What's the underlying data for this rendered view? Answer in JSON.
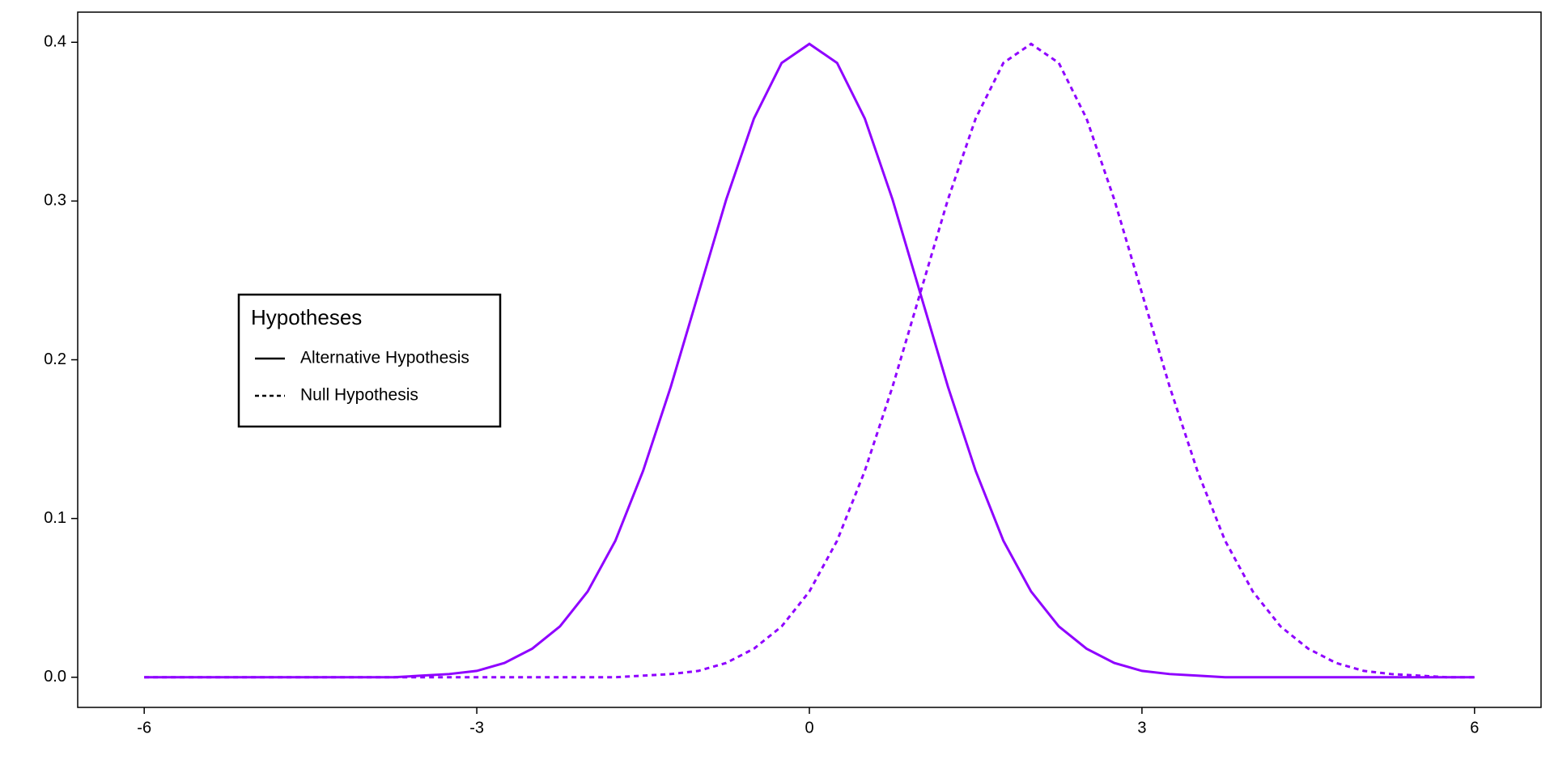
{
  "chart_data": {
    "type": "line",
    "x": [
      -6,
      -5.75,
      -5.5,
      -5.25,
      -5,
      -4.75,
      -4.5,
      -4.25,
      -4,
      -3.75,
      -3.5,
      -3.25,
      -3,
      -2.75,
      -2.5,
      -2.25,
      -2,
      -1.75,
      -1.5,
      -1.25,
      -1,
      -0.75,
      -0.5,
      -0.25,
      0,
      0.25,
      0.5,
      0.75,
      1,
      1.25,
      1.5,
      1.75,
      2,
      2.25,
      2.5,
      2.75,
      3,
      3.25,
      3.5,
      3.75,
      4,
      4.25,
      4.5,
      4.75,
      5,
      5.25,
      5.5,
      5.75,
      6
    ],
    "series": [
      {
        "name": "Alternative Hypothesis",
        "color": "#8f00ff",
        "linestyle": "solid",
        "values": [
          0,
          0,
          0,
          0,
          0,
          0,
          0,
          0,
          0,
          0,
          0.001,
          0.002,
          0.004,
          0.009,
          0.018,
          0.032,
          0.054,
          0.086,
          0.13,
          0.183,
          0.242,
          0.301,
          0.352,
          0.387,
          0.399,
          0.387,
          0.352,
          0.301,
          0.242,
          0.183,
          0.13,
          0.086,
          0.054,
          0.032,
          0.018,
          0.009,
          0.004,
          0.002,
          0.001,
          0,
          0,
          0,
          0,
          0,
          0,
          0,
          0,
          0,
          0
        ]
      },
      {
        "name": "Null Hypothesis",
        "color": "#8f00ff",
        "linestyle": "dashed",
        "values": [
          0,
          0,
          0,
          0,
          0,
          0,
          0,
          0,
          0,
          0,
          0,
          0,
          0,
          0,
          0,
          0,
          0,
          0,
          0.001,
          0.002,
          0.004,
          0.009,
          0.018,
          0.032,
          0.054,
          0.086,
          0.13,
          0.183,
          0.242,
          0.301,
          0.352,
          0.387,
          0.399,
          0.387,
          0.352,
          0.301,
          0.242,
          0.183,
          0.13,
          0.086,
          0.054,
          0.032,
          0.018,
          0.009,
          0.004,
          0.002,
          0.001,
          0,
          0
        ]
      }
    ],
    "legend_title": "Hypotheses",
    "legend": "center left",
    "xlim": [
      -6.6,
      6.6
    ],
    "xticks": [
      -6,
      -3,
      0,
      3,
      6
    ],
    "ylim": [
      -0.019,
      0.419
    ],
    "yticks": [
      {
        "value": 0,
        "label": "0.0"
      },
      0.1,
      0.2,
      0.3,
      0.4
    ],
    "grid": false
  }
}
